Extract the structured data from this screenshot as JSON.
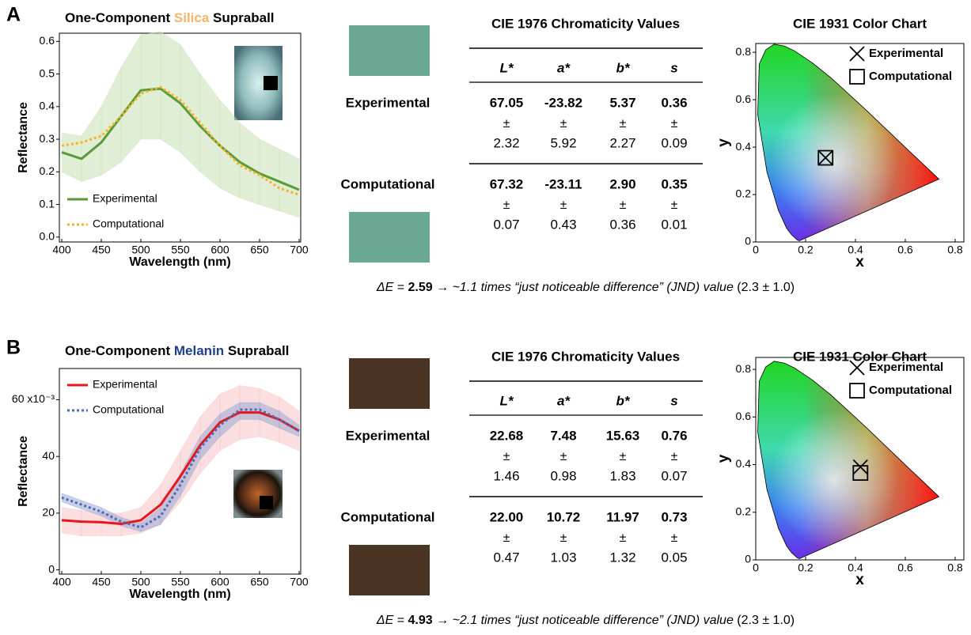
{
  "panels": [
    {
      "label": "A",
      "title": [
        "One-Component",
        "Silica",
        "Supraball"
      ],
      "title_color": "#f3b46c",
      "swatches": [
        "#6ca995",
        "#6ca995"
      ],
      "table": {
        "title": "CIE 1976 Chromaticity Values",
        "columns": [
          "L*",
          "a*",
          "b*",
          "s"
        ],
        "rows": [
          {
            "label": "Experimental",
            "color": "#6aa843",
            "means": [
              "67.05",
              "-23.82",
              "5.37",
              "0.36"
            ],
            "pm": "±",
            "sds": [
              "2.32",
              "5.92",
              "2.27",
              "0.09"
            ]
          },
          {
            "label": "Computational",
            "color": "#f6b81e",
            "means": [
              "67.32",
              "-23.11",
              "2.90",
              "0.35"
            ],
            "pm": "±",
            "sds": [
              "0.07",
              "0.43",
              "0.36",
              "0.01"
            ]
          }
        ]
      },
      "delta_e": {
        "symbol": "ΔE",
        "eq": "=",
        "value": "2.59",
        "note": "→ ~1.1 times “just noticeable difference” (JND) value",
        "ref": "(2.3 ± 1.0)"
      }
    },
    {
      "label": "B",
      "title": [
        "One-Component",
        "Melanin",
        "Supraball"
      ],
      "title_color": "#1f3e8c",
      "swatches": [
        "#4b3424",
        "#4b3424"
      ],
      "table": {
        "title": "CIE 1976 Chromaticity Values",
        "columns": [
          "L*",
          "a*",
          "b*",
          "s"
        ],
        "rows": [
          {
            "label": "Experimental",
            "color": "#e8161c",
            "means": [
              "22.68",
              "7.48",
              "15.63",
              "0.76"
            ],
            "pm": "±",
            "sds": [
              "1.46",
              "0.98",
              "1.83",
              "0.07"
            ]
          },
          {
            "label": "Computational",
            "color": "#3a63b4",
            "means": [
              "22.00",
              "10.72",
              "11.97",
              "0.73"
            ],
            "pm": "±",
            "sds": [
              "0.47",
              "1.03",
              "1.32",
              "0.05"
            ]
          }
        ]
      },
      "delta_e": {
        "symbol": "ΔE",
        "eq": "=",
        "value": "4.93",
        "note": "→ ~2.1 times “just noticeable difference” (JND) value",
        "ref": "(2.3 ± 1.0)"
      }
    }
  ],
  "chart_data": [
    {
      "type": "line",
      "xlabel": "Wavelength (nm)",
      "ylabel": "Reflectance",
      "legend": "lower left",
      "x": [
        400,
        425,
        450,
        475,
        500,
        525,
        550,
        575,
        600,
        625,
        650,
        675,
        700
      ],
      "xlim": [
        397,
        702
      ],
      "xticks": [
        400,
        450,
        500,
        550,
        600,
        650,
        700
      ],
      "ylim": [
        -0.015,
        0.625
      ],
      "yticks": [
        {
          "value": 0,
          "label": "0.0"
        },
        0.1,
        0.2,
        0.3,
        0.4,
        0.5,
        0.6
      ],
      "series": [
        {
          "name": "Experimental",
          "color": "#5a9a3a",
          "dash": false,
          "band_color": "#c8e0b4",
          "values": [
            0.26,
            0.24,
            0.29,
            0.37,
            0.45,
            0.455,
            0.41,
            0.34,
            0.28,
            0.23,
            0.195,
            0.17,
            0.145
          ],
          "upper": [
            0.32,
            0.31,
            0.4,
            0.52,
            0.62,
            0.63,
            0.59,
            0.5,
            0.42,
            0.35,
            0.3,
            0.27,
            0.24
          ],
          "lower": [
            0.2,
            0.17,
            0.19,
            0.23,
            0.3,
            0.3,
            0.26,
            0.2,
            0.15,
            0.12,
            0.1,
            0.08,
            0.06
          ]
        },
        {
          "name": "Computational",
          "color": "#f5b324",
          "dash": true,
          "values": [
            0.28,
            0.29,
            0.31,
            0.37,
            0.44,
            0.46,
            0.42,
            0.35,
            0.28,
            0.22,
            0.19,
            0.15,
            0.13
          ]
        }
      ]
    },
    {
      "type": "scatter",
      "title": "CIE 1931 Color Chart",
      "xlabel": "x",
      "ylabel": "y",
      "legend": "upper right",
      "xlim": [
        0,
        0.835
      ],
      "xticks": [
        0,
        0.2,
        0.4,
        0.6,
        0.8
      ],
      "ylim": [
        0,
        0.837
      ],
      "yticks": [
        0,
        0.2,
        0.4,
        0.6,
        0.8
      ],
      "series": [
        {
          "name": "Experimental",
          "marker": "x",
          "color": "#000000",
          "x": [
            0.28
          ],
          "y": [
            0.355
          ]
        },
        {
          "name": "Computational",
          "marker": "square",
          "color": "#000000",
          "x": [
            0.28
          ],
          "y": [
            0.355
          ]
        }
      ]
    },
    {
      "type": "line",
      "xlabel": "Wavelength (nm)",
      "ylabel": "Reflectance",
      "legend": "upper left",
      "x": [
        400,
        425,
        450,
        475,
        500,
        525,
        550,
        575,
        600,
        625,
        650,
        675,
        700
      ],
      "xlim": [
        397,
        702
      ],
      "xticks": [
        400,
        450,
        500,
        550,
        600,
        650,
        700
      ],
      "ylim": [
        -1.5,
        71
      ],
      "yticks": [
        0,
        20,
        40,
        {
          "value": 60,
          "label": "60 x10⁻³"
        }
      ],
      "series": [
        {
          "name": "Experimental",
          "color": "#e8161c",
          "dash": false,
          "band_color": "#f7c3c5",
          "values": [
            17.5,
            17,
            16.8,
            16.2,
            17.5,
            23,
            33,
            44,
            52,
            55.5,
            55.5,
            53,
            49
          ],
          "upper": [
            22,
            21,
            20,
            20,
            22,
            30,
            42,
            54,
            62,
            65,
            64,
            61,
            56
          ],
          "lower": [
            13,
            12,
            12,
            12,
            13,
            16,
            24,
            34,
            42,
            46,
            47,
            45,
            42
          ]
        },
        {
          "name": "Computational",
          "color": "#4a6bb8",
          "dash": true,
          "band_color": "#9aa8d4",
          "values": [
            25.5,
            23,
            20.5,
            17,
            15,
            19,
            30,
            43,
            51,
            56.5,
            56.5,
            53,
            49
          ],
          "upper": [
            27,
            24.5,
            22,
            18.5,
            16.5,
            22,
            34,
            47,
            55,
            59,
            59,
            56,
            51
          ],
          "lower": [
            24,
            21.5,
            19,
            15.5,
            13.5,
            16,
            26,
            39,
            47,
            53,
            53,
            50,
            47
          ]
        }
      ]
    },
    {
      "type": "scatter",
      "title": "CIE 1931 Color Chart",
      "xlabel": "x",
      "ylabel": "y",
      "legend": "upper right",
      "xlim": [
        0,
        0.835
      ],
      "xticks": [
        0,
        0.2,
        0.4,
        0.6,
        0.8
      ],
      "ylim": [
        0,
        0.85
      ],
      "yticks": [
        0,
        0.2,
        0.4,
        0.6,
        0.8
      ],
      "series": [
        {
          "name": "Experimental",
          "marker": "x",
          "color": "#000000",
          "x": [
            0.42
          ],
          "y": [
            0.39
          ]
        },
        {
          "name": "Computational",
          "marker": "square",
          "color": "#000000",
          "x": [
            0.42
          ],
          "y": [
            0.365
          ]
        }
      ]
    }
  ]
}
